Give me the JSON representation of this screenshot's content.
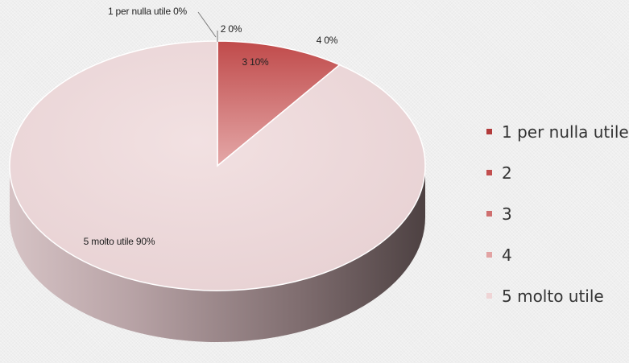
{
  "chart_data": {
    "type": "pie",
    "style": "3d",
    "categories": [
      "1 per nulla utile",
      "2",
      "3",
      "4",
      "5 molto utile"
    ],
    "values": [
      0,
      0,
      10,
      0,
      90
    ],
    "unit": "%",
    "colors": [
      "#b23b3b",
      "#c24e4e",
      "#cf6f6f",
      "#e2a3a3",
      "#efd5d6"
    ],
    "data_labels": [
      "1 per nulla utile 0%",
      "2 0%",
      "3 10%",
      "4 0%",
      "5 molto utile 90%"
    ],
    "legend_position": "right"
  }
}
